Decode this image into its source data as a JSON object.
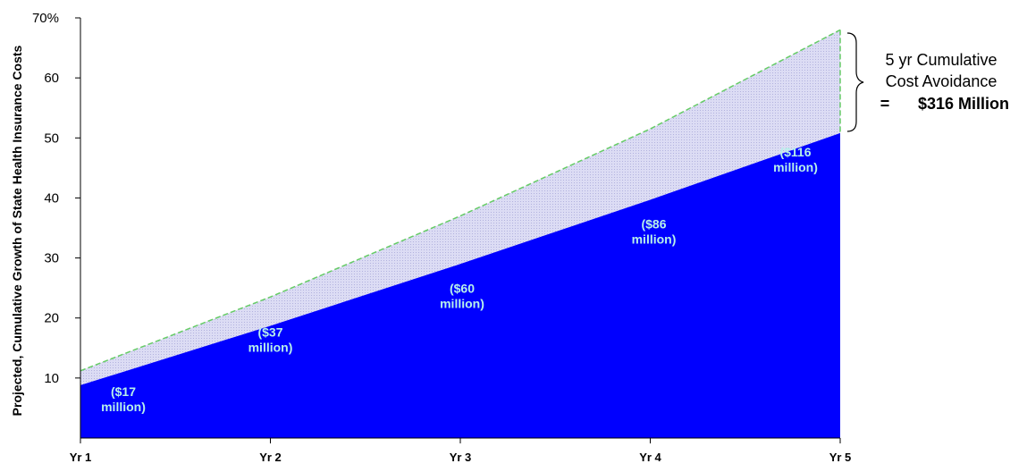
{
  "chart_data": {
    "type": "area",
    "ylabel": "Projected, Cumulative Growth of State Health Insurance Costs",
    "xlabel": "",
    "categories": [
      "Yr 1",
      "Yr 2",
      "Yr 3",
      "Yr 4",
      "Yr 5"
    ],
    "ylim": [
      0,
      70
    ],
    "y_ticks": [
      {
        "value": 10,
        "label": "10"
      },
      {
        "value": 20,
        "label": "20"
      },
      {
        "value": 30,
        "label": "30"
      },
      {
        "value": 40,
        "label": "40"
      },
      {
        "value": 50,
        "label": "50"
      },
      {
        "value": 60,
        "label": "60"
      },
      {
        "value": 70,
        "label": "70%"
      }
    ],
    "grid": false,
    "series": [
      {
        "values": [
          11.2,
          23.5,
          37.0,
          51.5,
          68.0
        ],
        "color": "#d6d6f2",
        "edge": "#66cc66"
      },
      {
        "values": [
          8.8,
          18.7,
          29.0,
          39.7,
          50.8
        ],
        "color": "#0000ff"
      }
    ],
    "data_labels": [
      {
        "x": "Yr 1",
        "lines": [
          "($17",
          "million)"
        ]
      },
      {
        "x": "Yr 2",
        "lines": [
          "($37",
          "million)"
        ]
      },
      {
        "x": "Yr 3",
        "lines": [
          "($60",
          "million)"
        ]
      },
      {
        "x": "Yr 4",
        "lines": [
          "($86",
          "million)"
        ]
      },
      {
        "x": "Yr 5",
        "lines": [
          "($116",
          "million)"
        ]
      }
    ],
    "annotation": {
      "lines": [
        "5 yr Cumulative",
        "Cost Avoidance"
      ],
      "prefix": "=",
      "total": "$316 Million"
    }
  }
}
